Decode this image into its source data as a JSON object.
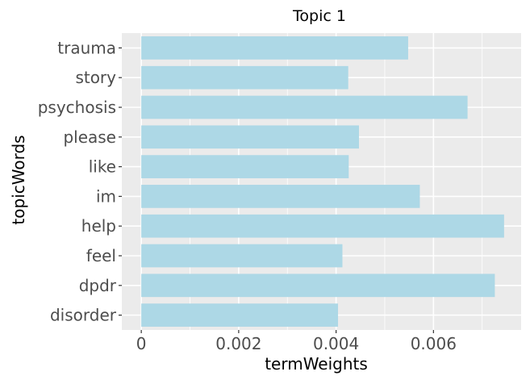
{
  "chart_data": {
    "type": "bar",
    "orientation": "horizontal",
    "title": "Topic 1",
    "xlabel": "termWeights",
    "ylabel": "topicWords",
    "categories": [
      "trauma",
      "story",
      "psychosis",
      "please",
      "like",
      "im",
      "help",
      "feel",
      "dpdr",
      "disorder"
    ],
    "values": [
      0.00548,
      0.00425,
      0.0067,
      0.00447,
      0.00426,
      0.00572,
      0.00745,
      0.00413,
      0.00726,
      0.00404
    ],
    "xlim": [
      -0.0004,
      0.0078
    ],
    "xticks": [
      0,
      0.002,
      0.004,
      0.006
    ],
    "xtick_labels": [
      "0",
      "0.002",
      "0.004",
      "0.006"
    ],
    "bar_color": "#add8e6",
    "panel_background": "#ebebeb",
    "grid_color": "#ffffff",
    "grid": true,
    "legend": false
  }
}
